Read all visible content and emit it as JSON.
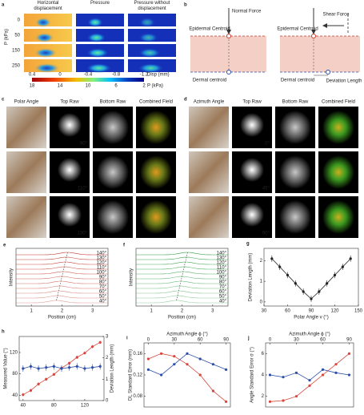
{
  "panels": {
    "a": {
      "label": "a",
      "columns": [
        "Horizontal displacement",
        "Pressure",
        "Pressure without displacement"
      ],
      "ylabel": "P (kPa)",
      "rows": [
        "0",
        "50",
        "150",
        "250"
      ],
      "colorbar_top": [
        "0.4",
        "0",
        "-0.4",
        "-0.8",
        "-1.2"
      ],
      "colorbar_top_label": "Disp (mm)",
      "colorbar_bottom": [
        "18",
        "14",
        "10",
        "6",
        "2"
      ],
      "colorbar_bottom_label": "P (kPa)"
    },
    "b": {
      "label": "b",
      "normal_force": "Normal Force",
      "epidermal": "Epidermal Centroid",
      "dermal": "Dermal centroid",
      "shear_force": "Shear Force",
      "epidermal_2": "Epidermal Centroid",
      "dermal_2": "Dermal centroid",
      "deviation": "Deviation Length"
    },
    "c": {
      "label": "c",
      "columns": [
        "Polar Angle",
        "Top Raw",
        "Bottom Raw",
        "Combined Field"
      ],
      "angles": [
        "90°",
        "110°",
        "130°"
      ]
    },
    "d": {
      "label": "d",
      "columns": [
        "Azimuth Angle",
        "Top Raw",
        "Bottom Raw",
        "Combined Field"
      ],
      "angles": [
        "0°",
        "45°",
        "90°"
      ]
    },
    "e": {
      "label": "e",
      "xlabel": "Position (cm)",
      "ylabel": "Intensity",
      "xlim": [
        0.5,
        3.5
      ],
      "xticks": [
        1,
        2,
        3
      ],
      "color": "#c0392b",
      "curve_labels": [
        "140°",
        "130°",
        "120°",
        "110°",
        "100°",
        "90°",
        "80°",
        "70°",
        "60°",
        "50°",
        "40°"
      ]
    },
    "f": {
      "label": "f",
      "xlabel": "Position (cm)",
      "ylabel": "Intensity",
      "xlim": [
        0.5,
        3.5
      ],
      "xticks": [
        1,
        2,
        3
      ],
      "color": "#2e9e44",
      "curve_labels": [
        "140°",
        "130°",
        "120°",
        "110°",
        "100°",
        "90°",
        "80°",
        "70°",
        "60°",
        "50°",
        "40°"
      ]
    },
    "g": {
      "label": "g",
      "type": "line",
      "xlabel": "Polar Angle ν (°)",
      "ylabel": "Deviation Length (mm)",
      "xlim": [
        30,
        150
      ],
      "xticks": [
        30,
        60,
        90,
        120,
        150
      ],
      "ylim": [
        -0.2,
        2.6
      ],
      "yticks": [
        0,
        1,
        2
      ],
      "x": [
        40,
        50,
        60,
        70,
        80,
        90,
        100,
        110,
        120,
        130,
        140
      ],
      "series": [
        {
          "color": "#222222",
          "values": [
            2.1,
            1.7,
            1.3,
            0.9,
            0.5,
            0.15,
            0.5,
            0.9,
            1.3,
            1.7,
            2.1
          ],
          "errors": [
            0.15,
            0.15,
            0.15,
            0.15,
            0.15,
            0.15,
            0.15,
            0.15,
            0.15,
            0.15,
            0.15
          ]
        }
      ]
    },
    "h": {
      "label": "h",
      "type": "line",
      "ylabel": "Measured Value (°)",
      "y2label": "Deviation Length (mm)",
      "xlim": [
        35,
        145
      ],
      "xticks": [
        40,
        80,
        120
      ],
      "ylim": [
        30,
        150
      ],
      "yticks": [
        40,
        80,
        120
      ],
      "y2lim": [
        0,
        3
      ],
      "y2ticks": [
        0,
        1,
        2,
        3
      ],
      "x": [
        40,
        50,
        60,
        70,
        80,
        90,
        100,
        110,
        120,
        130,
        140
      ],
      "series": [
        {
          "color": "#d9453b",
          "values": [
            41,
            49,
            61,
            70,
            79,
            91,
            100,
            111,
            119,
            131,
            139
          ],
          "errors": [
            3,
            3,
            3,
            3,
            3,
            3,
            3,
            3,
            3,
            3,
            3
          ]
        },
        {
          "color": "#2c4fa8",
          "axis": "y2",
          "values": [
            1.5,
            1.6,
            1.5,
            1.55,
            1.6,
            1.5,
            1.55,
            1.6,
            1.5,
            1.55,
            1.6
          ],
          "errors": [
            0.15,
            0.15,
            0.15,
            0.15,
            0.15,
            0.15,
            0.15,
            0.15,
            0.15,
            0.15,
            0.15
          ]
        }
      ]
    },
    "i": {
      "label": "i",
      "type": "line",
      "xlabel": "Azimuth Angle ϕ (°)",
      "xaxis_position": "top",
      "ylabel": "DL Standard Error (mm)",
      "xlim": [
        -5,
        95
      ],
      "xticks": [
        0,
        30,
        60,
        90
      ],
      "ylim": [
        0.06,
        0.18
      ],
      "yticks": [
        0.08,
        0.12,
        0.16
      ],
      "x": [
        0,
        15,
        30,
        45,
        60,
        75,
        90
      ],
      "series": [
        {
          "color": "#d9453b",
          "values": [
            0.15,
            0.16,
            0.155,
            0.14,
            0.12,
            0.09,
            0.07
          ]
        },
        {
          "color": "#2c4fa8",
          "values": [
            0.13,
            0.12,
            0.14,
            0.16,
            0.15,
            0.14,
            0.13
          ]
        }
      ]
    },
    "j": {
      "label": "j",
      "type": "line",
      "xlabel": "Azimuth Angle ϕ (°)",
      "xaxis_position": "top",
      "ylabel": "Angle Standard Error σ (°)",
      "xlim": [
        -5,
        95
      ],
      "xticks": [
        0,
        30,
        60,
        90
      ],
      "ylim": [
        1,
        7
      ],
      "yticks": [
        2,
        4,
        6
      ],
      "x": [
        0,
        15,
        30,
        45,
        60,
        75,
        90
      ],
      "series": [
        {
          "color": "#d9453b",
          "values": [
            1.5,
            1.6,
            2,
            3,
            4,
            5,
            6
          ]
        },
        {
          "color": "#2c4fa8",
          "values": [
            4,
            3.8,
            4.2,
            3.5,
            4.5,
            4.2,
            4.0
          ]
        }
      ]
    }
  }
}
